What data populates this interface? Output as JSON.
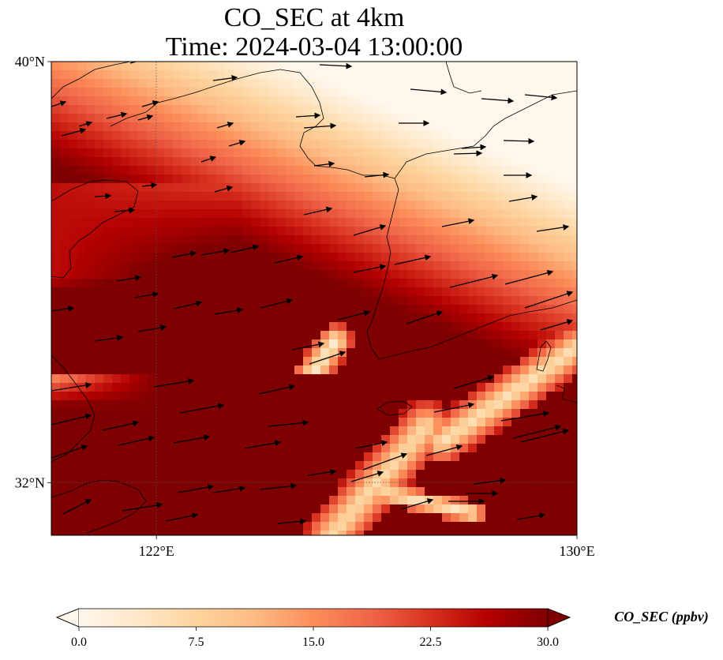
{
  "title_line1": "CO_SEC at 4km",
  "title_line2": "Time: 2024-03-04 13:00:00",
  "axes": {
    "lat_ticks": [
      {
        "value": 40,
        "label": "40°N"
      },
      {
        "value": 32,
        "label": "32°N"
      }
    ],
    "lon_ticks": [
      {
        "value": 122,
        "label": "122°E"
      },
      {
        "value": 130,
        "label": "130°E"
      }
    ]
  },
  "colorbar": {
    "label": "CO_SEC (ppbv)",
    "min": 0,
    "max": 30,
    "extend": "both",
    "ticks": [
      {
        "value": 0,
        "label": "0.0"
      },
      {
        "value": 7.5,
        "label": "7.5"
      },
      {
        "value": 15,
        "label": "15.0"
      },
      {
        "value": 22.5,
        "label": "22.5"
      },
      {
        "value": 30,
        "label": "30.0"
      }
    ],
    "colors": [
      "#fff7ec",
      "#fee8c8",
      "#fdd49e",
      "#fdbb84",
      "#fc8d59",
      "#ef6548",
      "#d7301f",
      "#b30000",
      "#7f0000"
    ]
  },
  "colors": {
    "coastline": "#000000",
    "gridline": "#555555",
    "wind_vector": "#000000"
  }
}
